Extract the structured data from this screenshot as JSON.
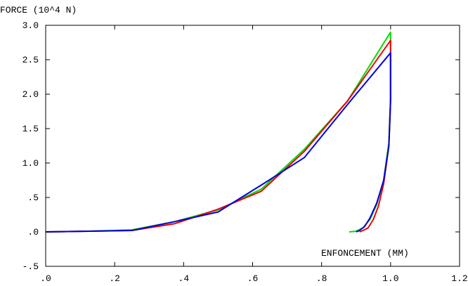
{
  "chart_data": {
    "type": "line",
    "ylabel": "FORCE (10^4 N)",
    "xlabel": "ENFONCEMENT (MM)",
    "xlim": [
      0,
      1.2
    ],
    "ylim": [
      -0.5,
      3.0
    ],
    "x_ticks": [
      0,
      0.2,
      0.4,
      0.6,
      0.8,
      1.0,
      1.2
    ],
    "x_tick_labels": [
      ".0",
      ".2",
      ".4",
      ".6",
      ".8",
      "1.0",
      "1.2"
    ],
    "y_ticks": [
      -0.5,
      0,
      0.5,
      1.0,
      1.5,
      2.0,
      2.5,
      3.0
    ],
    "y_tick_labels": [
      "-.5",
      ".0",
      ".5",
      "1.0",
      "1.5",
      "2.0",
      "2.5",
      "3.0"
    ],
    "grid": false,
    "colors": {
      "axis": "#000000",
      "green": "#00dd00",
      "red": "#ee0000",
      "blue": "#0000dd"
    },
    "series": [
      {
        "color": "#00dd00",
        "x": [
          0.0,
          0.125,
          0.25,
          0.375,
          0.5,
          0.625,
          0.75,
          0.875,
          1.0,
          1.0,
          0.995,
          0.98,
          0.96,
          0.94,
          0.92,
          0.9,
          0.88
        ],
        "y": [
          0.0,
          0.01,
          0.03,
          0.15,
          0.32,
          0.62,
          1.2,
          1.9,
          2.9,
          1.95,
          1.3,
          0.75,
          0.4,
          0.18,
          0.06,
          0.01,
          0.0
        ]
      },
      {
        "color": "#ee0000",
        "x": [
          0.0,
          0.125,
          0.25,
          0.375,
          0.5,
          0.625,
          0.75,
          0.875,
          1.0,
          1.0,
          0.995,
          0.98,
          0.965,
          0.95,
          0.935,
          0.92,
          0.91
        ],
        "y": [
          0.0,
          0.01,
          0.02,
          0.12,
          0.33,
          0.59,
          1.17,
          1.9,
          2.78,
          1.9,
          1.25,
          0.7,
          0.38,
          0.18,
          0.06,
          0.02,
          0.0
        ]
      },
      {
        "color": "#0000dd",
        "x": [
          0.0,
          0.125,
          0.25,
          0.375,
          0.5,
          0.625,
          0.75,
          0.875,
          1.0,
          1.0,
          0.995,
          0.98,
          0.96,
          0.94,
          0.925,
          0.91,
          0.9
        ],
        "y": [
          0.0,
          0.01,
          0.02,
          0.15,
          0.29,
          0.68,
          1.08,
          1.85,
          2.6,
          1.9,
          1.25,
          0.75,
          0.42,
          0.2,
          0.08,
          0.02,
          0.0
        ]
      }
    ]
  }
}
